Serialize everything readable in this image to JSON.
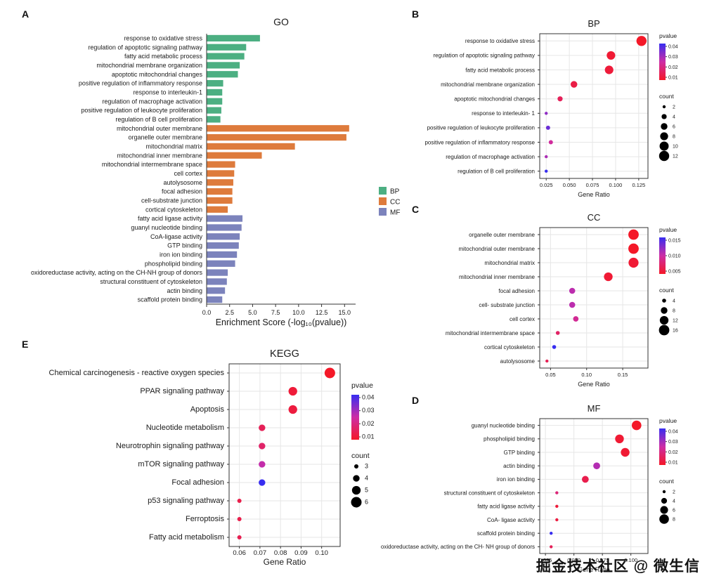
{
  "panels": {
    "a_letter": "A",
    "b_letter": "B",
    "c_letter": "C",
    "d_letter": "D",
    "e_letter": "E"
  },
  "watermark": "掘金技术社区 @ 微生信",
  "chart_data": [
    {
      "id": "A",
      "type": "bar",
      "title": "GO",
      "xlabel": "Enrichment Score (-log₁₀(pvalue))",
      "xlim": [
        0,
        16.2
      ],
      "xticks": {
        "values": [
          0,
          2.5,
          5,
          7.5,
          10,
          12.5,
          15
        ],
        "labels": [
          "0.0",
          "2.5",
          "5.0",
          "7.5",
          "10.0",
          "12.5",
          "15.0"
        ]
      },
      "legend": [
        {
          "name": "BP",
          "color": "#4CAF82"
        },
        {
          "name": "CC",
          "color": "#DE7B3C"
        },
        {
          "name": "MF",
          "color": "#7C83BC"
        }
      ],
      "groups": [
        {
          "name": "BP",
          "color": "#4CAF82",
          "items": [
            [
              "response to oxidative stress",
              5.8
            ],
            [
              "regulation of apoptotic signaling pathway",
              4.3
            ],
            [
              "fatty acid metabolic process",
              4.1
            ],
            [
              "mitochondrial membrane organization",
              3.6
            ],
            [
              "apoptotic mitochondrial changes",
              3.4
            ],
            [
              "positive regulation of inflammatory response",
              1.8
            ],
            [
              "response to interleukin-1",
              1.7
            ],
            [
              "regulation of macrophage activation",
              1.7
            ],
            [
              "positive regulation of leukocyte proliferation",
              1.6
            ],
            [
              "regulation of B cell proliferation",
              1.5
            ]
          ]
        },
        {
          "name": "CC",
          "color": "#DE7B3C",
          "items": [
            [
              "mitochondrial outer membrane",
              15.5
            ],
            [
              "organelle outer membrane",
              15.2
            ],
            [
              "mitochondrial matrix",
              9.6
            ],
            [
              "mitochondrial inner membrane",
              6.0
            ],
            [
              "mitochondrial intermembrane space",
              3.1
            ],
            [
              "cell cortex",
              3.0
            ],
            [
              "autolysosome",
              2.9
            ],
            [
              "focal adhesion",
              2.8
            ],
            [
              "cell-substrate junction",
              2.8
            ],
            [
              "cortical cytoskeleton",
              2.3
            ]
          ]
        },
        {
          "name": "MF",
          "color": "#7C83BC",
          "items": [
            [
              "fatty acid ligase activity",
              3.9
            ],
            [
              "guanyl nucleotide binding",
              3.8
            ],
            [
              "CoA-ligase activity",
              3.6
            ],
            [
              "GTP binding",
              3.5
            ],
            [
              "iron ion binding",
              3.3
            ],
            [
              "phospholipid binding",
              3.1
            ],
            [
              "oxidoreductase activity, acting on the CH-NH group of donors",
              2.3
            ],
            [
              "structural constituent of cytoskeleton",
              2.2
            ],
            [
              "actin binding",
              2.0
            ],
            [
              "scaffold protein binding",
              1.7
            ]
          ]
        }
      ]
    },
    {
      "id": "B",
      "type": "scatter",
      "title": "BP",
      "xlabel": "Gene Ratio",
      "xlim": [
        0.018,
        0.135
      ],
      "xticks": {
        "values": [
          0.025,
          0.05,
          0.075,
          0.1,
          0.125
        ],
        "labels": [
          "0.025",
          "0.050",
          "0.075",
          "0.100",
          "0.125"
        ]
      },
      "color_scale": {
        "low": "#F41828",
        "mid": "#CD2DA5",
        "high": "#372DF0"
      },
      "pvalue_legend": {
        "title": "pvalue",
        "values": [
          0.04,
          0.03,
          0.02,
          0.01
        ],
        "labels": [
          "0.04",
          "0.03",
          "0.02",
          "0.01"
        ]
      },
      "count_legend": {
        "title": "count",
        "values": [
          2,
          4,
          6,
          8,
          10,
          12
        ]
      },
      "points": [
        {
          "label": "response to oxidative stress",
          "gene_ratio": 0.128,
          "count": 12,
          "pvalue": 0.001
        },
        {
          "label": "regulation of apoptotic signaling pathway",
          "gene_ratio": 0.095,
          "count": 9,
          "pvalue": 0.003
        },
        {
          "label": "fatty acid metabolic process",
          "gene_ratio": 0.093,
          "count": 9,
          "pvalue": 0.004
        },
        {
          "label": "mitochondrial membrane organization",
          "gene_ratio": 0.055,
          "count": 6,
          "pvalue": 0.006
        },
        {
          "label": "apoptotic mitochondrial changes",
          "gene_ratio": 0.04,
          "count": 4,
          "pvalue": 0.009
        },
        {
          "label": "response to interleukin- 1",
          "gene_ratio": 0.025,
          "count": 2,
          "pvalue": 0.03
        },
        {
          "label": "positive regulation of leukocyte proliferation",
          "gene_ratio": 0.027,
          "count": 3,
          "pvalue": 0.035
        },
        {
          "label": "positive regulation of inflammatory response",
          "gene_ratio": 0.03,
          "count": 3,
          "pvalue": 0.02
        },
        {
          "label": "regulation of macrophage activation",
          "gene_ratio": 0.025,
          "count": 2,
          "pvalue": 0.026
        },
        {
          "label": "regulation of B cell proliferation",
          "gene_ratio": 0.025,
          "count": 2,
          "pvalue": 0.042
        }
      ]
    },
    {
      "id": "C",
      "type": "scatter",
      "title": "CC",
      "xlabel": "Gene Ratio",
      "xlim": [
        0.035,
        0.185
      ],
      "xticks": {
        "values": [
          0.05,
          0.1,
          0.15
        ],
        "labels": [
          "0.05",
          "0.10",
          "0.15"
        ]
      },
      "color_scale": {
        "low": "#F41828",
        "mid": "#CD2DA5",
        "high": "#372DF0"
      },
      "pvalue_legend": {
        "title": "pvalue",
        "values": [
          0.015,
          0.01,
          0.005
        ],
        "labels": [
          "0.015",
          "0.010",
          "0.005"
        ]
      },
      "count_legend": {
        "title": "count",
        "values": [
          4,
          8,
          12,
          16
        ]
      },
      "points": [
        {
          "label": "organelle outer membrane",
          "gene_ratio": 0.165,
          "count": 16,
          "pvalue": 0.0002
        },
        {
          "label": "mitochondrial outer membrane",
          "gene_ratio": 0.165,
          "count": 16,
          "pvalue": 0.0002
        },
        {
          "label": "mitochondrial matrix",
          "gene_ratio": 0.165,
          "count": 15,
          "pvalue": 0.001
        },
        {
          "label": "mitochondrial inner membrane",
          "gene_ratio": 0.13,
          "count": 12,
          "pvalue": 0.001
        },
        {
          "label": "focal adhesion",
          "gene_ratio": 0.08,
          "count": 7,
          "pvalue": 0.009
        },
        {
          "label": "cell- substrate junction",
          "gene_ratio": 0.08,
          "count": 7,
          "pvalue": 0.009
        },
        {
          "label": "cell cortex",
          "gene_ratio": 0.085,
          "count": 6,
          "pvalue": 0.007
        },
        {
          "label": "mitochondrial intermembrane space",
          "gene_ratio": 0.06,
          "count": 4,
          "pvalue": 0.004
        },
        {
          "label": "cortical cytoskeleton",
          "gene_ratio": 0.055,
          "count": 4,
          "pvalue": 0.016
        },
        {
          "label": "autolysosome",
          "gene_ratio": 0.045,
          "count": 3,
          "pvalue": 0.003
        }
      ]
    },
    {
      "id": "D",
      "type": "scatter",
      "title": "MF",
      "xlabel": "Gene Ratio",
      "xlim": [
        0.02,
        0.115
      ],
      "xticks": {
        "values": [
          0.025,
          0.05,
          0.075,
          0.1
        ],
        "labels": [
          "0.025",
          "0.050",
          "0.075",
          "0.100"
        ]
      },
      "color_scale": {
        "low": "#F41828",
        "mid": "#CD2DA5",
        "high": "#372DF0"
      },
      "pvalue_legend": {
        "title": "pvalue",
        "values": [
          0.04,
          0.03,
          0.02,
          0.01
        ],
        "labels": [
          "0.04",
          "0.03",
          "0.02",
          "0.01"
        ]
      },
      "count_legend": {
        "title": "count",
        "values": [
          2,
          4,
          6,
          8
        ]
      },
      "points": [
        {
          "label": "guanyl nucleotide binding",
          "gene_ratio": 0.105,
          "count": 8,
          "pvalue": 0.001
        },
        {
          "label": "phospholipid binding",
          "gene_ratio": 0.09,
          "count": 7,
          "pvalue": 0.003
        },
        {
          "label": "GTP binding",
          "gene_ratio": 0.095,
          "count": 7,
          "pvalue": 0.003
        },
        {
          "label": "actin binding",
          "gene_ratio": 0.07,
          "count": 5,
          "pvalue": 0.025
        },
        {
          "label": "iron ion binding",
          "gene_ratio": 0.06,
          "count": 5,
          "pvalue": 0.007
        },
        {
          "label": "structural constituent of cytoskeleton",
          "gene_ratio": 0.035,
          "count": 2,
          "pvalue": 0.014
        },
        {
          "label": "fatty acid ligase activity",
          "gene_ratio": 0.035,
          "count": 2,
          "pvalue": 0.004
        },
        {
          "label": "CoA- ligase activity",
          "gene_ratio": 0.035,
          "count": 2,
          "pvalue": 0.005
        },
        {
          "label": "scaffold protein binding",
          "gene_ratio": 0.03,
          "count": 2,
          "pvalue": 0.042
        },
        {
          "label": "oxidoreductase activity, acting on the CH- NH group of donors",
          "gene_ratio": 0.03,
          "count": 2,
          "pvalue": 0.009
        }
      ]
    },
    {
      "id": "E",
      "type": "scatter",
      "title": "KEGG",
      "xlabel": "Gene Ratio",
      "xlim": [
        0.055,
        0.109
      ],
      "xticks": {
        "values": [
          0.06,
          0.07,
          0.08,
          0.09,
          0.1
        ],
        "labels": [
          "0.06",
          "0.07",
          "0.08",
          "0.09",
          "0.10"
        ]
      },
      "color_scale": {
        "low": "#F41828",
        "mid": "#CD2DA5",
        "high": "#372DF0"
      },
      "pvalue_legend": {
        "title": "pvalue",
        "values": [
          0.04,
          0.03,
          0.02,
          0.01
        ],
        "labels": [
          "0.04",
          "0.03",
          "0.02",
          "0.01"
        ]
      },
      "count_legend": {
        "title": "count",
        "values": [
          3,
          4,
          5,
          6
        ]
      },
      "points": [
        {
          "label": "Chemical carcinogenesis -  reactive oxygen species",
          "gene_ratio": 0.104,
          "count": 6,
          "pvalue": 0.002
        },
        {
          "label": "PPAR signaling pathway",
          "gene_ratio": 0.086,
          "count": 5,
          "pvalue": 0.005
        },
        {
          "label": "Apoptosis",
          "gene_ratio": 0.086,
          "count": 5,
          "pvalue": 0.006
        },
        {
          "label": "Nucleotide metabolism",
          "gene_ratio": 0.071,
          "count": 4,
          "pvalue": 0.01
        },
        {
          "label": "Neurotrophin signaling pathway",
          "gene_ratio": 0.071,
          "count": 4,
          "pvalue": 0.013
        },
        {
          "label": "mTOR signaling pathway",
          "gene_ratio": 0.071,
          "count": 4,
          "pvalue": 0.025
        },
        {
          "label": "Focal adhesion",
          "gene_ratio": 0.071,
          "count": 4,
          "pvalue": 0.045
        },
        {
          "label": "p53 signaling pathway",
          "gene_ratio": 0.06,
          "count": 3,
          "pvalue": 0.008
        },
        {
          "label": "Ferroptosis",
          "gene_ratio": 0.06,
          "count": 3,
          "pvalue": 0.008
        },
        {
          "label": "Fatty acid metabolism",
          "gene_ratio": 0.06,
          "count": 3,
          "pvalue": 0.009
        }
      ]
    }
  ]
}
